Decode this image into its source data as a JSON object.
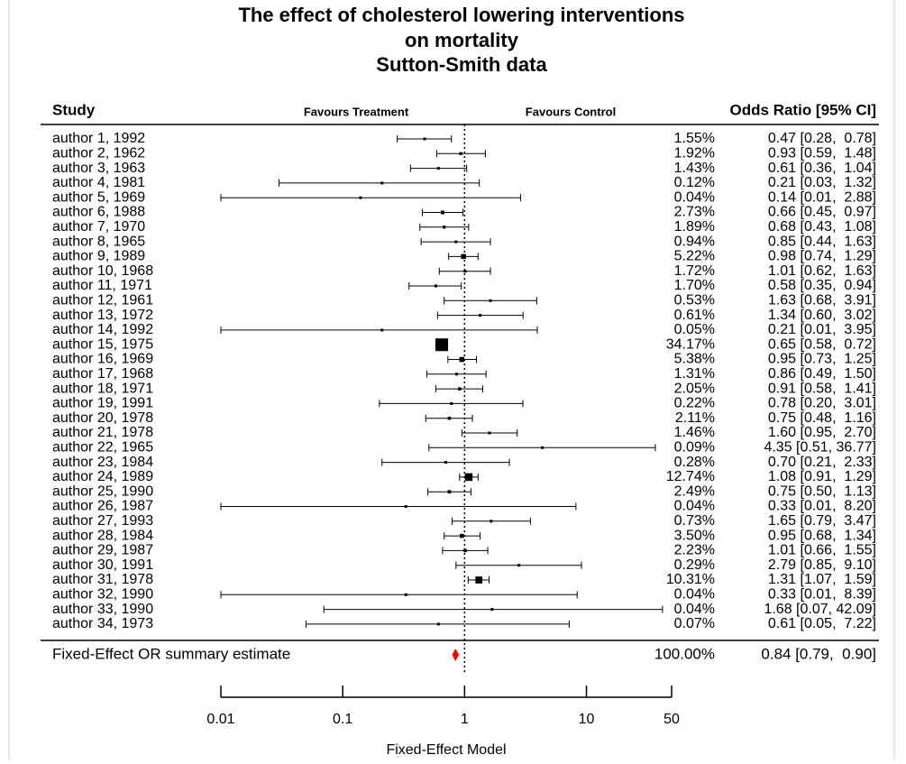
{
  "chart_data": {
    "type": "forest",
    "title": [
      "The effect of cholesterol lowering interventions",
      "on mortality",
      "Sutton-Smith data"
    ],
    "study_header": "Study",
    "left_label": "Favours Treatment",
    "right_label": "Favours Control",
    "ci_header": "Odds Ratio [95% CI]",
    "categories": [
      "author 1, 1992",
      "author 2, 1962",
      "author 3, 1963",
      "author 4, 1981",
      "author 5, 1969",
      "author 6, 1988",
      "author 7, 1970",
      "author 8, 1965",
      "author 9, 1989",
      "author 10, 1968",
      "author 11, 1971",
      "author 12, 1961",
      "author 13, 1972",
      "author 14, 1992",
      "author 15, 1975",
      "author 16, 1969",
      "author 17, 1968",
      "author 18, 1971",
      "author 19, 1991",
      "author 20, 1978",
      "author 21, 1978",
      "author 22, 1965",
      "author 23, 1984",
      "author 24, 1989",
      "author 25, 1990",
      "author 26, 1987",
      "author 27, 1993",
      "author 28, 1984",
      "author 29, 1987",
      "author 30, 1991",
      "author 31, 1978",
      "author 32, 1990",
      "author 33, 1990",
      "author 34, 1973"
    ],
    "values": [
      0.47,
      0.93,
      0.61,
      0.21,
      0.14,
      0.66,
      0.68,
      0.85,
      0.98,
      1.01,
      0.58,
      1.63,
      1.34,
      0.21,
      0.65,
      0.95,
      0.86,
      0.91,
      0.78,
      0.75,
      1.6,
      4.35,
      0.7,
      1.08,
      0.75,
      0.33,
      1.65,
      0.95,
      1.01,
      2.79,
      1.31,
      0.33,
      1.68,
      0.61
    ],
    "lower": [
      0.28,
      0.59,
      0.36,
      0.03,
      0.01,
      0.45,
      0.43,
      0.44,
      0.74,
      0.62,
      0.35,
      0.68,
      0.6,
      0.01,
      0.58,
      0.73,
      0.49,
      0.58,
      0.2,
      0.48,
      0.95,
      0.51,
      0.21,
      0.91,
      0.5,
      0.01,
      0.79,
      0.68,
      0.66,
      0.85,
      1.07,
      0.01,
      0.07,
      0.05
    ],
    "upper": [
      0.78,
      1.48,
      1.04,
      1.32,
      2.88,
      0.97,
      1.08,
      1.63,
      1.29,
      1.63,
      0.94,
      3.91,
      3.02,
      3.95,
      0.72,
      1.25,
      1.5,
      1.41,
      3.01,
      1.16,
      2.7,
      36.77,
      2.33,
      1.29,
      1.13,
      8.2,
      3.47,
      1.34,
      1.55,
      9.1,
      1.59,
      8.39,
      42.09,
      7.22
    ],
    "weights": [
      1.55,
      1.92,
      1.43,
      0.12,
      0.04,
      2.73,
      1.89,
      0.94,
      5.22,
      1.72,
      1.7,
      0.53,
      0.61,
      0.05,
      34.17,
      5.38,
      1.31,
      2.05,
      0.22,
      2.11,
      1.46,
      0.09,
      0.28,
      12.74,
      2.49,
      0.04,
      0.73,
      3.5,
      2.23,
      0.29,
      10.31,
      0.04,
      0.04,
      0.07
    ],
    "weight_labels": [
      "1.55%",
      "1.92%",
      "1.43%",
      "0.12%",
      "0.04%",
      "2.73%",
      "1.89%",
      "0.94%",
      "5.22%",
      "1.72%",
      "1.70%",
      "0.53%",
      "0.61%",
      "0.05%",
      "34.17%",
      "5.38%",
      "1.31%",
      "2.05%",
      "0.22%",
      "2.11%",
      "1.46%",
      "0.09%",
      "0.28%",
      "12.74%",
      "2.49%",
      "0.04%",
      "0.73%",
      "3.50%",
      "2.23%",
      "0.29%",
      "10.31%",
      "0.04%",
      "0.04%",
      "0.07%"
    ],
    "value_labels": [
      "0.47 [0.28,  0.78]",
      "0.93 [0.59,  1.48]",
      "0.61 [0.36,  1.04]",
      "0.21 [0.03,  1.32]",
      "0.14 [0.01,  2.88]",
      "0.66 [0.45,  0.97]",
      "0.68 [0.43,  1.08]",
      "0.85 [0.44,  1.63]",
      "0.98 [0.74,  1.29]",
      "1.01 [0.62,  1.63]",
      "0.58 [0.35,  0.94]",
      "1.63 [0.68,  3.91]",
      "1.34 [0.60,  3.02]",
      "0.21 [0.01,  3.95]",
      "0.65 [0.58,  0.72]",
      "0.95 [0.73,  1.25]",
      "0.86 [0.49,  1.50]",
      "0.91 [0.58,  1.41]",
      "0.78 [0.20,  3.01]",
      "0.75 [0.48,  1.16]",
      "1.60 [0.95,  2.70]",
      "4.35 [0.51, 36.77]",
      "0.70 [0.21,  2.33]",
      "1.08 [0.91,  1.29]",
      "0.75 [0.50,  1.13]",
      "0.33 [0.01,  8.20]",
      "1.65 [0.79,  3.47]",
      "0.95 [0.68,  1.34]",
      "1.01 [0.66,  1.55]",
      "2.79 [0.85,  9.10]",
      "1.31 [1.07,  1.59]",
      "0.33 [0.01,  8.39]",
      "1.68 [0.07, 42.09]",
      "0.61 [0.05,  7.22]"
    ],
    "summary": {
      "label": "Fixed-Effect OR summary estimate",
      "value": 0.84,
      "lower": 0.79,
      "upper": 0.9,
      "weight": 100,
      "weight_label": "100.00%",
      "value_label": "0.84 [0.79,  0.90]",
      "color": "#ff0000"
    },
    "xlabel": "Fixed-Effect Model",
    "xlim": [
      0.01,
      50
    ],
    "xticks": [
      0.01,
      0.1,
      1,
      10,
      50
    ],
    "log_x": true,
    "refline": 1,
    "color": "#000000"
  }
}
